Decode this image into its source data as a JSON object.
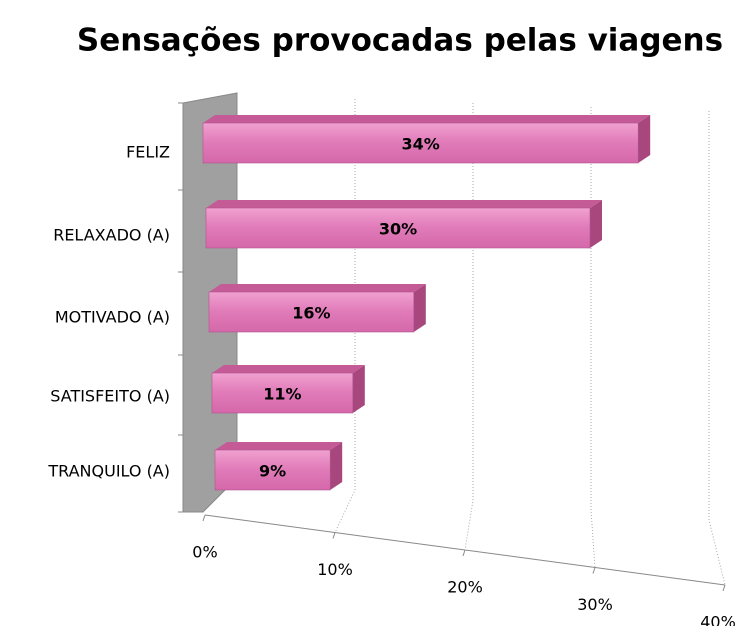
{
  "chart_data": {
    "type": "bar3d",
    "title": "Sensações provocadas pelas viagens",
    "categories": [
      "FELIZ",
      "RELAXADO (A)",
      "MOTIVADO (A)",
      "SATISFEITO  (A)",
      "TRANQUILO (A)"
    ],
    "values": [
      34,
      30,
      16,
      11,
      9
    ],
    "value_labels": [
      "34%",
      "30%",
      "16%",
      "11%",
      "9%"
    ],
    "color": "#e07ab8",
    "xlim": [
      0,
      40
    ],
    "xticks": [
      {
        "value": 0,
        "label": "0%"
      },
      {
        "value": 10,
        "label": "10%"
      },
      {
        "value": 20,
        "label": "20%"
      },
      {
        "value": 30,
        "label": "30%"
      },
      {
        "value": 40,
        "label": "40%"
      }
    ],
    "grid": true
  }
}
